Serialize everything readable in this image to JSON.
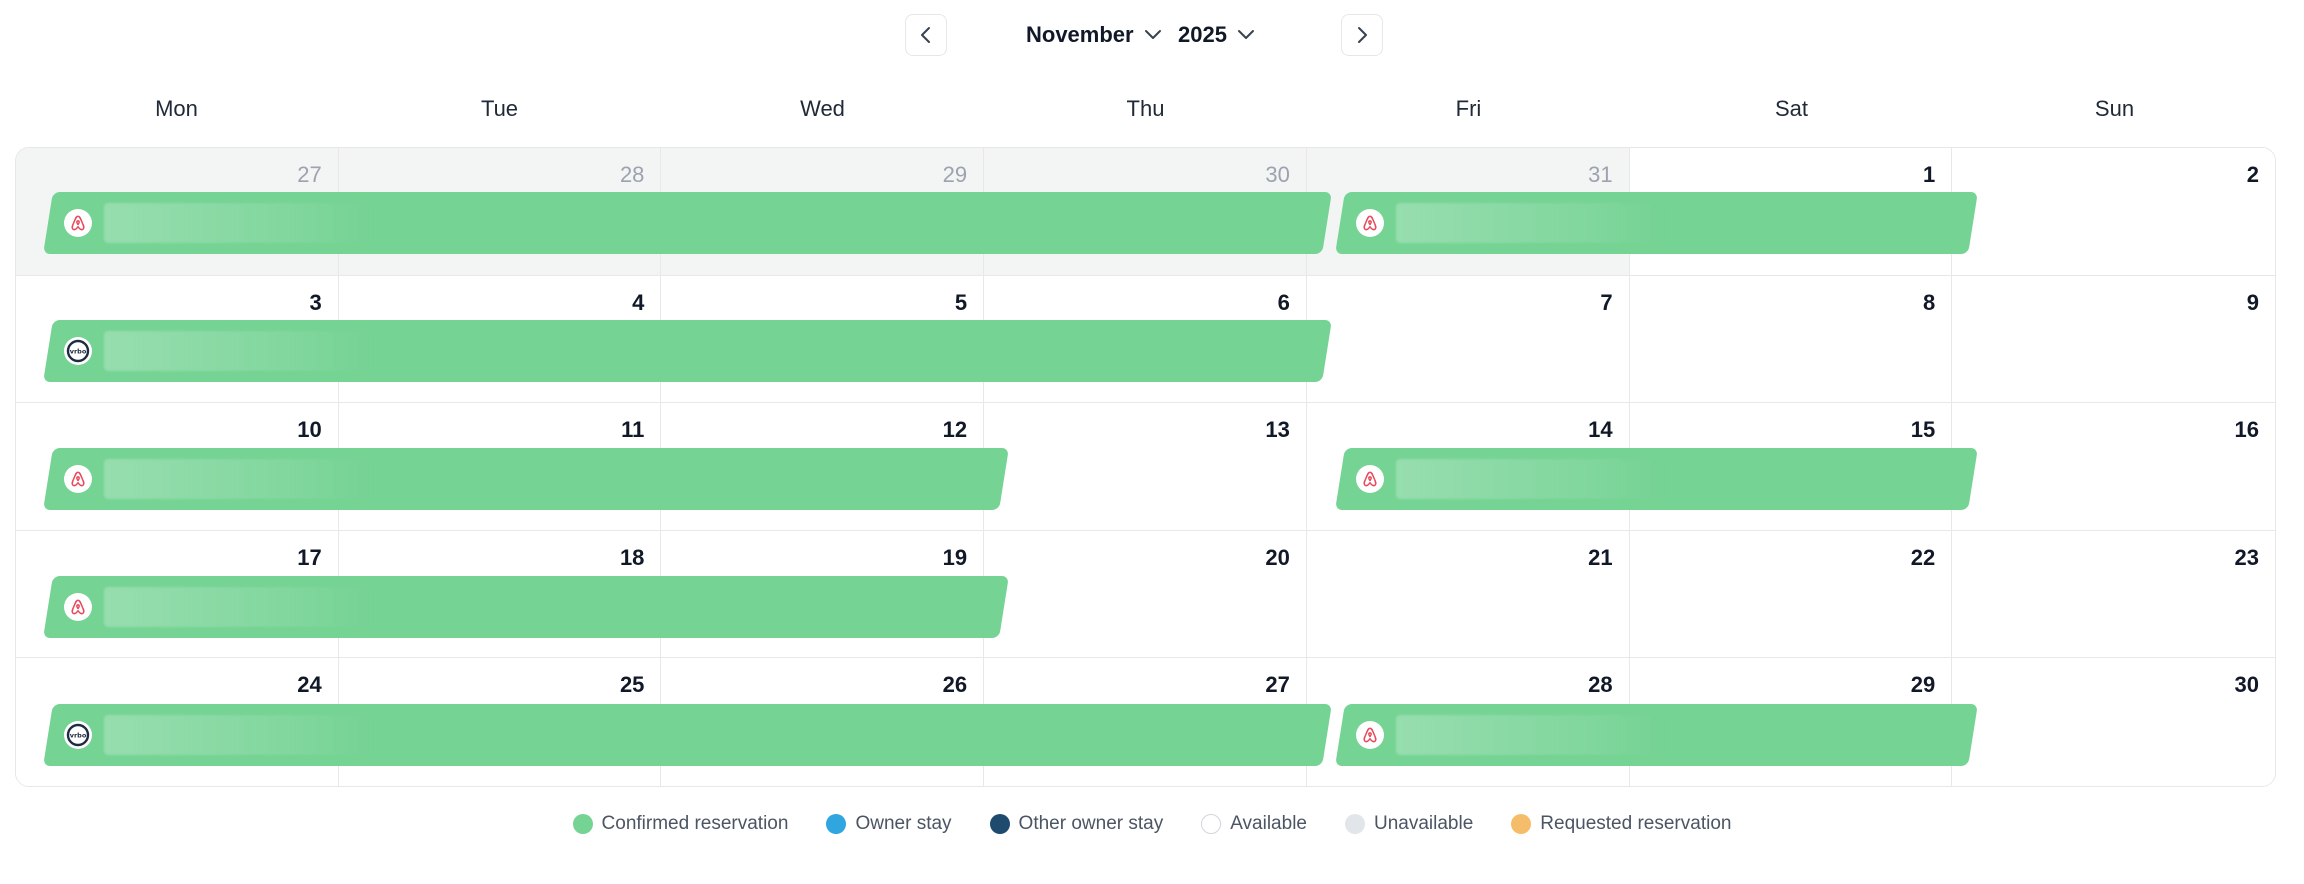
{
  "header": {
    "month": "November",
    "year": "2025",
    "prev_icon": "chevron-left-icon",
    "next_icon": "chevron-right-icon"
  },
  "weekdays": [
    "Mon",
    "Tue",
    "Wed",
    "Thu",
    "Fri",
    "Sat",
    "Sun"
  ],
  "days": [
    {
      "num": "27",
      "outside": true
    },
    {
      "num": "28",
      "outside": true
    },
    {
      "num": "29",
      "outside": true
    },
    {
      "num": "30",
      "outside": true
    },
    {
      "num": "31",
      "outside": true
    },
    {
      "num": "1",
      "outside": false
    },
    {
      "num": "2",
      "outside": false
    },
    {
      "num": "3",
      "outside": false
    },
    {
      "num": "4",
      "outside": false
    },
    {
      "num": "5",
      "outside": false
    },
    {
      "num": "6",
      "outside": false
    },
    {
      "num": "7",
      "outside": false
    },
    {
      "num": "8",
      "outside": false
    },
    {
      "num": "9",
      "outside": false
    },
    {
      "num": "10",
      "outside": false
    },
    {
      "num": "11",
      "outside": false
    },
    {
      "num": "12",
      "outside": false
    },
    {
      "num": "13",
      "outside": false
    },
    {
      "num": "14",
      "outside": false
    },
    {
      "num": "15",
      "outside": false
    },
    {
      "num": "16",
      "outside": false
    },
    {
      "num": "17",
      "outside": false
    },
    {
      "num": "18",
      "outside": false
    },
    {
      "num": "19",
      "outside": false
    },
    {
      "num": "20",
      "outside": false
    },
    {
      "num": "21",
      "outside": false
    },
    {
      "num": "22",
      "outside": false
    },
    {
      "num": "23",
      "outside": false
    },
    {
      "num": "24",
      "outside": false
    },
    {
      "num": "25",
      "outside": false
    },
    {
      "num": "26",
      "outside": false
    },
    {
      "num": "27",
      "outside": false
    },
    {
      "num": "28",
      "outside": false
    },
    {
      "num": "29",
      "outside": false
    },
    {
      "num": "30",
      "outside": false
    }
  ],
  "reservations": [
    {
      "week": 1,
      "start_day": 1,
      "end_day": 5,
      "source": "airbnb",
      "status": "confirmed"
    },
    {
      "week": 1,
      "start_day": 5,
      "end_day": 7,
      "source": "airbnb",
      "status": "confirmed"
    },
    {
      "week": 2,
      "start_day": 1,
      "end_day": 5,
      "source": "vrbo",
      "status": "confirmed"
    },
    {
      "week": 3,
      "start_day": 1,
      "end_day": 4,
      "source": "airbnb",
      "status": "confirmed"
    },
    {
      "week": 3,
      "start_day": 5,
      "end_day": 7,
      "source": "airbnb",
      "status": "confirmed"
    },
    {
      "week": 4,
      "start_day": 1,
      "end_day": 4,
      "source": "airbnb",
      "status": "confirmed"
    },
    {
      "week": 5,
      "start_day": 1,
      "end_day": 5,
      "source": "vrbo",
      "status": "confirmed"
    },
    {
      "week": 5,
      "start_day": 5,
      "end_day": 7,
      "source": "airbnb",
      "status": "confirmed"
    }
  ],
  "legend": [
    {
      "label": "Confirmed reservation",
      "color": "#75d394"
    },
    {
      "label": "Owner stay",
      "color": "#2fa6e0"
    },
    {
      "label": "Other owner stay",
      "color": "#1e4a6e"
    },
    {
      "label": "Available",
      "color": "#ffffff"
    },
    {
      "label": "Unavailable",
      "color": "#e2e6ea"
    },
    {
      "label": "Requested reservation",
      "color": "#f5bd6a"
    }
  ]
}
